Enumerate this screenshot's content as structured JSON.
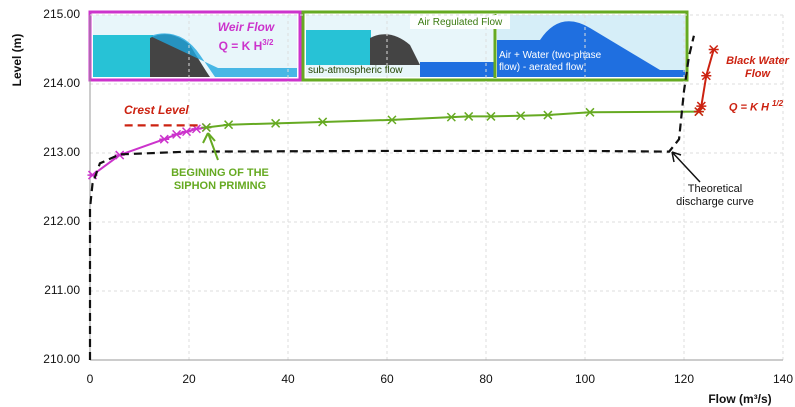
{
  "chart_data": {
    "type": "line",
    "x_label": "Flow (m³/s)",
    "y_label": "Level (m)",
    "xlim": [
      0,
      140
    ],
    "xticks": [
      0,
      20,
      40,
      60,
      80,
      100,
      120,
      140
    ],
    "ylim": [
      210,
      215
    ],
    "yticks": [
      {
        "value": 210,
        "label": "210.00"
      },
      {
        "value": 211,
        "label": "211.00"
      },
      {
        "value": 212,
        "label": "212.00"
      },
      {
        "value": 213,
        "label": "213.00"
      },
      {
        "value": 214,
        "label": "214.00"
      },
      {
        "value": 215,
        "label": "215.00"
      }
    ],
    "grid": true,
    "series": [
      {
        "name": "Weir Flow",
        "color": "#cc33cc",
        "markers": true,
        "dashed": false,
        "x": [
          0.5,
          6,
          15,
          17.5,
          19.5,
          21.5,
          23.5
        ],
        "values": [
          212.68,
          212.97,
          213.2,
          213.27,
          213.31,
          213.35,
          213.37
        ]
      },
      {
        "name": "Air Regulated Flow",
        "color": "#66aa22",
        "markers": true,
        "dashed": false,
        "x": [
          23.5,
          28,
          37.5,
          47,
          61,
          73,
          76.5,
          81,
          87,
          92.5,
          101,
          123
        ],
        "values": [
          213.37,
          213.41,
          213.43,
          213.45,
          213.48,
          213.52,
          213.53,
          213.53,
          213.54,
          213.55,
          213.59,
          213.6
        ]
      },
      {
        "name": "Black Water Flow",
        "color": "#cc2211",
        "markers": true,
        "dashed": false,
        "x": [
          123,
          123.5,
          124.5,
          126
        ],
        "values": [
          213.6,
          213.68,
          214.12,
          214.5
        ]
      },
      {
        "name": "Crest Level",
        "color": "#cc2211",
        "markers": false,
        "dashed": true,
        "x": [
          7,
          22
        ],
        "values": [
          213.4,
          213.4
        ]
      },
      {
        "name": "Theoretical discharge curve",
        "color": "#111111",
        "markers": false,
        "dashed": true,
        "x": [
          0,
          0,
          0.5,
          2,
          6,
          20,
          60,
          100,
          117,
          119,
          120,
          121,
          122
        ],
        "values": [
          210,
          212.2,
          212.55,
          212.85,
          212.98,
          213.02,
          213.03,
          213.03,
          213.02,
          213.2,
          213.9,
          214.4,
          214.7
        ]
      }
    ],
    "annotations": [
      {
        "text": "BEGINING OF THE SIPHON PRIMING"
      },
      {
        "text": "Q = K H",
        "sup": "3/2"
      },
      {
        "text": "Q = K H",
        "sup": "1/2"
      },
      {
        "text": "sub-atmospheric flow"
      },
      {
        "text": "Air + Water (two-phase flow) - aerated flow"
      }
    ]
  }
}
